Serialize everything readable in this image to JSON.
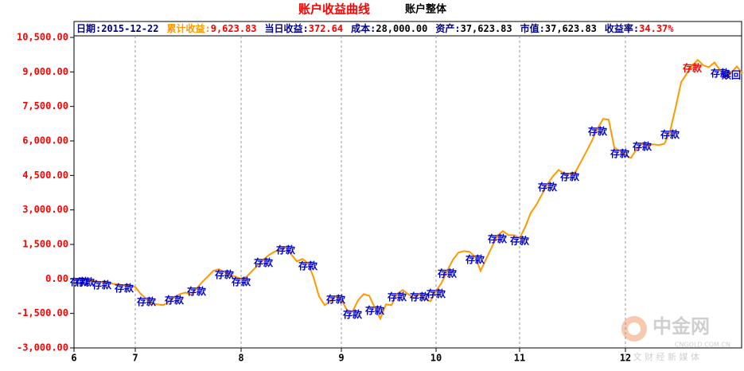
{
  "chart_data": {
    "type": "line",
    "title": "账户收益曲线",
    "subtitle": "账户整体",
    "info": [
      {
        "label": "日期:",
        "value": "2015-12-22",
        "color": "#00008b",
        "value_color": "#00008b"
      },
      {
        "label": "累计收益:",
        "value": "9,623.83",
        "color": "#ff9900",
        "value_color": "#ff0000"
      },
      {
        "label": "当日收益:",
        "value": "372.64",
        "color": "#00008b",
        "value_color": "#ff0000"
      },
      {
        "label": "成本:",
        "value": "28,000.00",
        "color": "#00008b",
        "value_color": "#000000"
      },
      {
        "label": "资产:",
        "value": "37,623.83",
        "color": "#00008b",
        "value_color": "#000000"
      },
      {
        "label": "市值:",
        "value": "37,623.83",
        "color": "#00008b",
        "value_color": "#000000"
      },
      {
        "label": "收益率:",
        "value": "34.37%",
        "color": "#00008b",
        "value_color": "#ff0000"
      }
    ],
    "categories": [
      "6",
      null,
      null,
      null,
      null,
      null,
      null,
      null,
      null,
      null,
      null,
      "7",
      null,
      null,
      null,
      null,
      null,
      null,
      null,
      null,
      null,
      null,
      null,
      null,
      null,
      null,
      null,
      null,
      null,
      null,
      "8",
      null,
      null,
      null,
      null,
      null,
      null,
      null,
      null,
      null,
      null,
      null,
      null,
      null,
      null,
      null,
      null,
      null,
      "9",
      null,
      null,
      null,
      null,
      null,
      null,
      null,
      null,
      null,
      null,
      null,
      null,
      null,
      null,
      null,
      null,
      "10",
      null,
      null,
      null,
      null,
      null,
      null,
      null,
      null,
      null,
      null,
      null,
      null,
      null,
      null,
      "11",
      null,
      null,
      null,
      null,
      null,
      null,
      null,
      null,
      null,
      null,
      null,
      null,
      null,
      null,
      null,
      null,
      null,
      null,
      "12",
      null,
      null,
      null,
      null,
      null,
      null,
      null,
      null,
      null,
      null,
      null,
      null,
      null,
      null,
      null,
      null,
      null,
      null,
      null,
      null,
      null
    ],
    "series": [
      {
        "name": "累计收益",
        "color": "#ff9900",
        "values": [
          0,
          0,
          -30,
          -70,
          -100,
          -140,
          -170,
          -210,
          -240,
          -280,
          -310,
          -350,
          -660,
          -870,
          -1040,
          -1110,
          -1140,
          -1000,
          -800,
          -660,
          -590,
          -690,
          -420,
          -140,
          100,
          350,
          420,
          310,
          170,
          100,
          0,
          100,
          350,
          590,
          830,
          1040,
          1180,
          1280,
          1380,
          1070,
          760,
          870,
          690,
          70,
          -760,
          -1140,
          -970,
          -760,
          -900,
          -1350,
          -1420,
          -930,
          -660,
          -730,
          -1250,
          -1730,
          -1110,
          -1140,
          -660,
          -480,
          -660,
          -830,
          -660,
          -870,
          -970,
          -520,
          -170,
          350,
          830,
          1140,
          1210,
          1180,
          970,
          350,
          870,
          1380,
          1870,
          2080,
          1900,
          1900,
          1770,
          2250,
          2870,
          3220,
          3670,
          4120,
          4470,
          4740,
          4570,
          4570,
          4640,
          5090,
          5540,
          6020,
          6540,
          6960,
          6920,
          5710,
          5570,
          5370,
          5260,
          5640,
          5880,
          5820,
          5850,
          5820,
          5880,
          6400,
          7440,
          8550,
          8930,
          9280,
          9520,
          9280,
          9210,
          9410,
          9070,
          8720,
          8970,
          9240,
          8930
        ]
      }
    ],
    "annotations": [
      {
        "text": "存款",
        "index": 1,
        "color": "#0000cc"
      },
      {
        "text": "存款",
        "index": 2,
        "color": "#0000cc"
      },
      {
        "text": "存款",
        "index": 5,
        "color": "#0000cc"
      },
      {
        "text": "存款",
        "index": 9,
        "color": "#0000cc"
      },
      {
        "text": "存款",
        "index": 13,
        "color": "#0000cc"
      },
      {
        "text": "存款",
        "index": 18,
        "color": "#0000cc"
      },
      {
        "text": "存款",
        "index": 22,
        "color": "#0000cc"
      },
      {
        "text": "存款",
        "index": 27,
        "color": "#0000cc"
      },
      {
        "text": "存款",
        "index": 30,
        "color": "#0000cc"
      },
      {
        "text": "存款",
        "index": 34,
        "color": "#0000cc"
      },
      {
        "text": "存款",
        "index": 38,
        "color": "#0000cc"
      },
      {
        "text": "存款",
        "index": 42,
        "color": "#0000cc"
      },
      {
        "text": "存款",
        "index": 47,
        "color": "#0000cc"
      },
      {
        "text": "存款",
        "index": 50,
        "color": "#0000cc"
      },
      {
        "text": "存款",
        "index": 54,
        "color": "#0000cc"
      },
      {
        "text": "存款",
        "index": 58,
        "color": "#0000cc"
      },
      {
        "text": "存款",
        "index": 62,
        "color": "#0000cc"
      },
      {
        "text": "存款",
        "index": 65,
        "color": "#0000cc"
      },
      {
        "text": "存款",
        "index": 67,
        "color": "#0000cc"
      },
      {
        "text": "存款",
        "index": 72,
        "color": "#0000cc"
      },
      {
        "text": "存款",
        "index": 76,
        "color": "#0000cc"
      },
      {
        "text": "存款",
        "index": 80,
        "color": "#0000cc"
      },
      {
        "text": "存款",
        "index": 85,
        "color": "#0000cc"
      },
      {
        "text": "存款",
        "index": 89,
        "color": "#0000cc"
      },
      {
        "text": "存款",
        "index": 94,
        "color": "#0000cc"
      },
      {
        "text": "存款",
        "index": 98,
        "color": "#0000cc"
      },
      {
        "text": "存款",
        "index": 102,
        "color": "#0000cc"
      },
      {
        "text": "存款",
        "index": 107,
        "color": "#0000cc"
      },
      {
        "text": "存款",
        "index": 111,
        "color": "#ff0000"
      },
      {
        "text": "存款",
        "index": 116,
        "color": "#0000cc"
      },
      {
        "text": "赎回",
        "index": 118,
        "color": "#0000cc"
      }
    ],
    "ylim": [
      -3000,
      10500
    ],
    "yticks": [
      {
        "value": -3000,
        "label": "-3,000.00"
      },
      {
        "value": -1500,
        "label": "-1,500.00"
      },
      {
        "value": 0,
        "label": "0.00"
      },
      {
        "value": 1500,
        "label": "1,500.00"
      },
      {
        "value": 3000,
        "label": "3,000.00"
      },
      {
        "value": 4500,
        "label": "4,500.00"
      },
      {
        "value": 6000,
        "label": "6,000.00"
      },
      {
        "value": 7500,
        "label": "7,500.00"
      },
      {
        "value": 9000,
        "label": "9,000.00"
      },
      {
        "value": 10500,
        "label": "10,500.00"
      }
    ],
    "grid": "x",
    "watermark": {
      "name": "中金网",
      "site": "CNGOLD.COM.CN",
      "slogan": "中 文 财 经 新 媒 体"
    }
  }
}
